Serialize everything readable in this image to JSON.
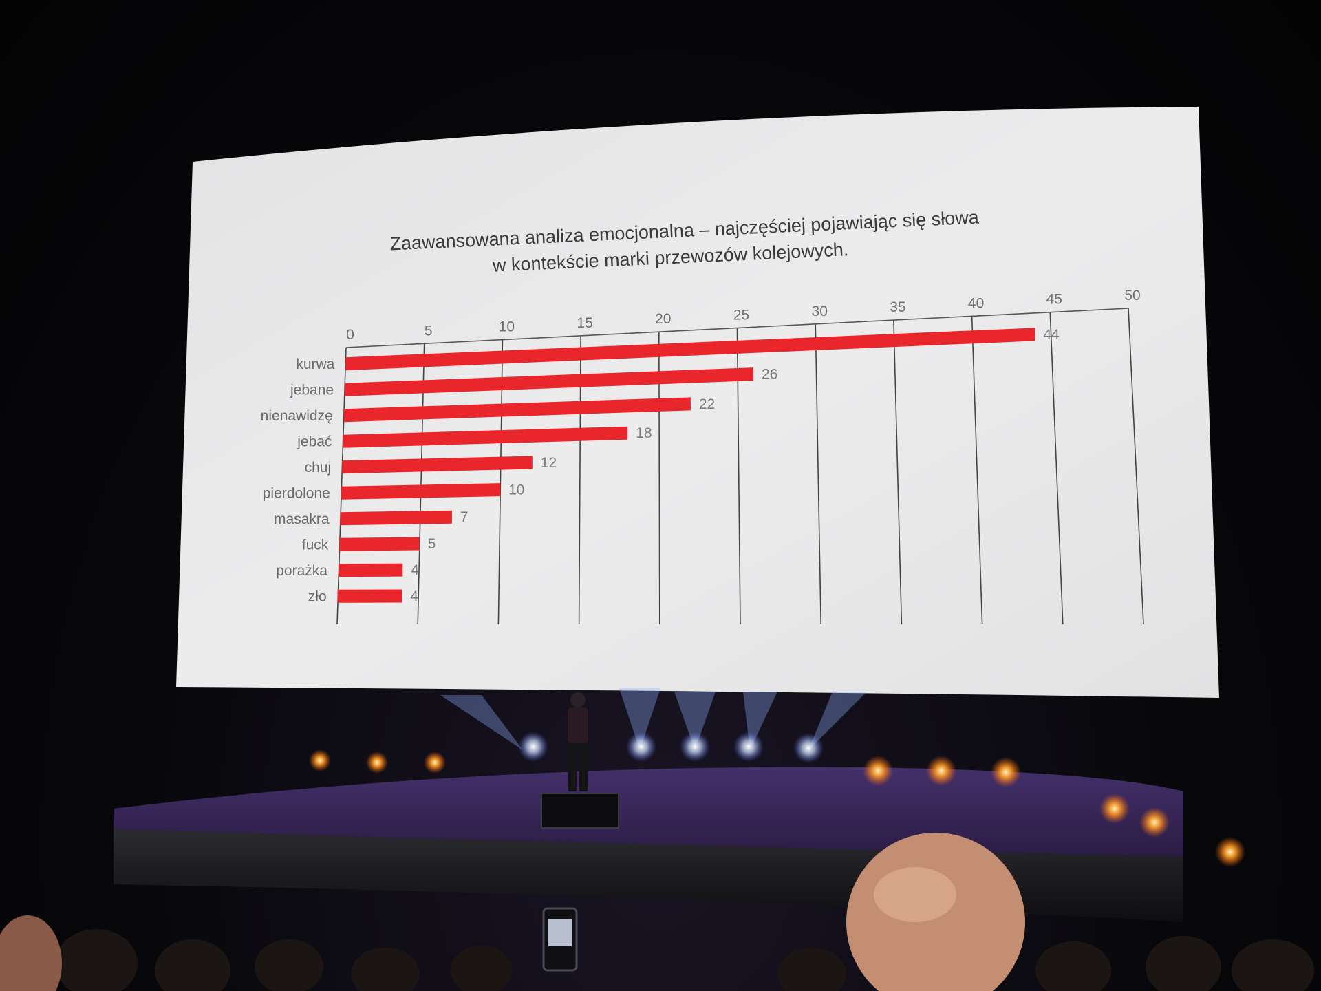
{
  "chart_data": {
    "type": "bar",
    "orientation": "horizontal",
    "title": "Zaawansowana analiza emocjonalna – najczęściej pojawiając się słowa",
    "subtitle": "w kontekście marki przewozów kolejowych.",
    "categories": [
      "kurwa",
      "jebane",
      "nienawidzę",
      "jebać",
      "chuj",
      "pierdolone",
      "masakra",
      "fuck",
      "porażka",
      "zło"
    ],
    "values": [
      44,
      26,
      22,
      18,
      12,
      10,
      7,
      5,
      4,
      4
    ],
    "value_labels": [
      "44",
      "26",
      "22",
      "18",
      "12",
      "10",
      "7",
      "5",
      "4",
      "4"
    ],
    "xlim": [
      0,
      50
    ],
    "x_ticks": [
      "0",
      "5",
      "10",
      "15",
      "20",
      "25",
      "30",
      "35",
      "40",
      "45",
      "50"
    ],
    "x_axis_position": "top",
    "grid": true,
    "bar_color": "#e8262b"
  },
  "colors": {
    "screen": "#e9e9ea",
    "bar": "#e8262b",
    "stage_carpet": "#3a2458"
  }
}
